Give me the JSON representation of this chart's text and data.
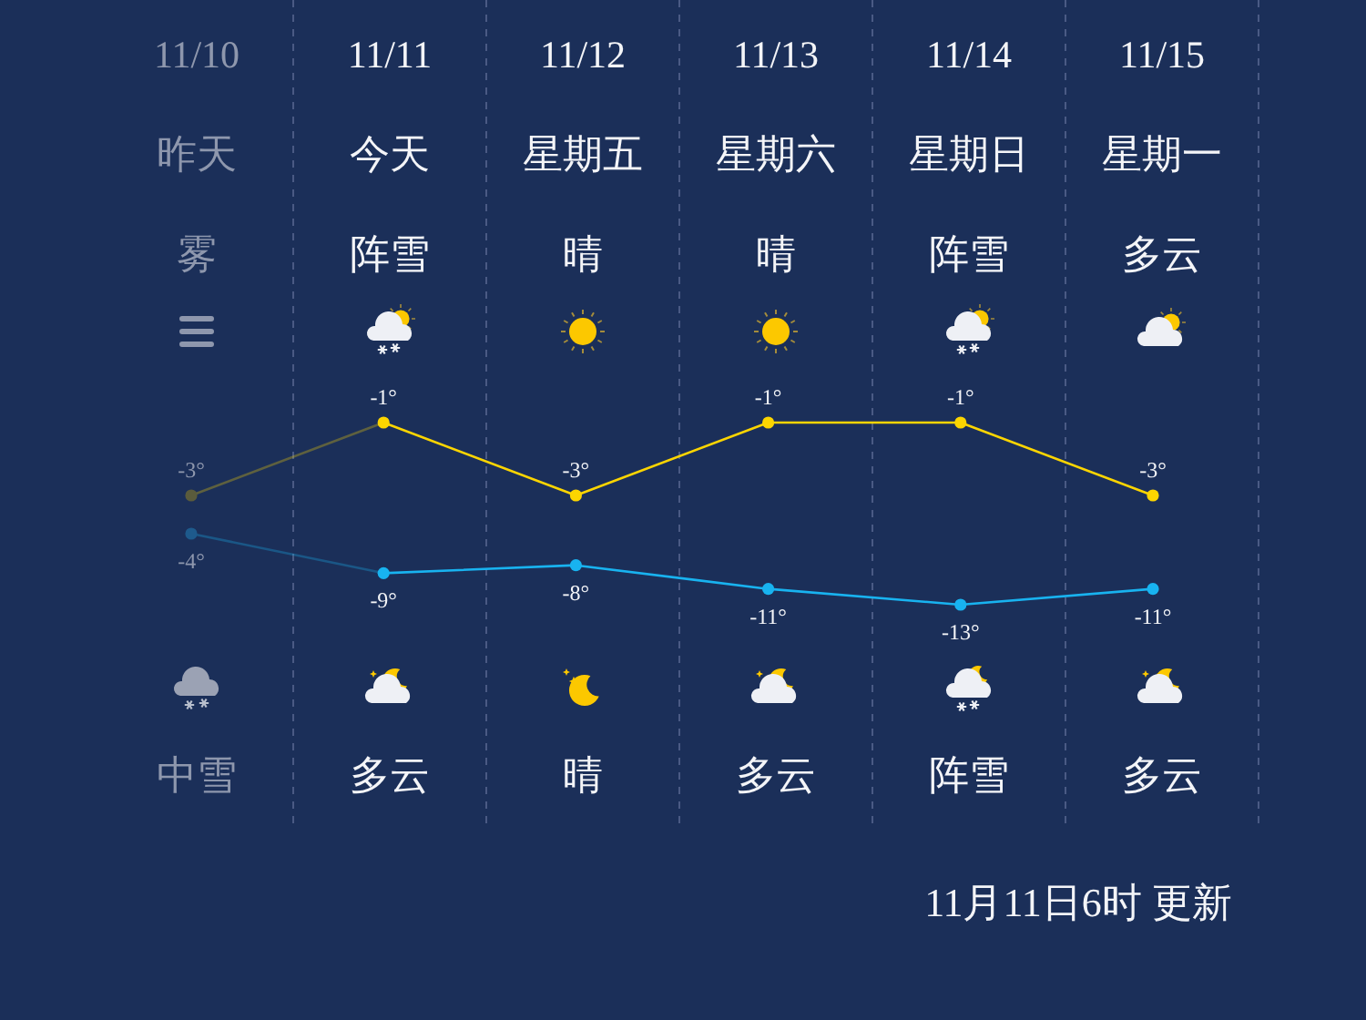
{
  "chart_data": [
    {
      "type": "line",
      "categories": [
        "11/10",
        "11/11",
        "11/12",
        "11/13",
        "11/14",
        "11/15"
      ],
      "series": [
        {
          "color": "#fcd500",
          "colors": [
            "#5a5b3c",
            "#fcd500",
            "#fcd500",
            "#fcd500",
            "#fcd500",
            "#fcd500"
          ],
          "values": [
            -3,
            -1,
            -3,
            -1,
            -1,
            -3
          ],
          "value_labels": [
            "-3°",
            "-1°",
            "-3°",
            "-1°",
            "-1°",
            "-3°"
          ]
        }
      ],
      "grid": "x",
      "marker": "circle",
      "line_style": "solid",
      "annotations": [
        "昨天",
        "今天",
        "星期五",
        "星期六",
        "星期日",
        "星期一",
        "雾",
        "阵雪",
        "晴",
        "晴",
        "阵雪",
        "多云"
      ]
    },
    {
      "type": "line",
      "categories": [
        "中雪",
        "多云",
        "晴",
        "多云",
        "阵雪",
        "多云"
      ],
      "series": [
        {
          "color": "#18b3f0",
          "colors": [
            "#1e5a8c",
            "#18b3f0",
            "#18b3f0",
            "#18b3f0",
            "#18b3f0",
            "#18b3f0"
          ],
          "values": [
            -4,
            -9,
            -8,
            -11,
            -13,
            -11
          ],
          "value_labels": [
            "-4°",
            "-9°",
            "-8°",
            "-11°",
            "-13°",
            "-11°"
          ]
        }
      ],
      "marker": "circle",
      "line_style": "solid",
      "annotations": [
        "11月11日6时 更新"
      ]
    }
  ]
}
